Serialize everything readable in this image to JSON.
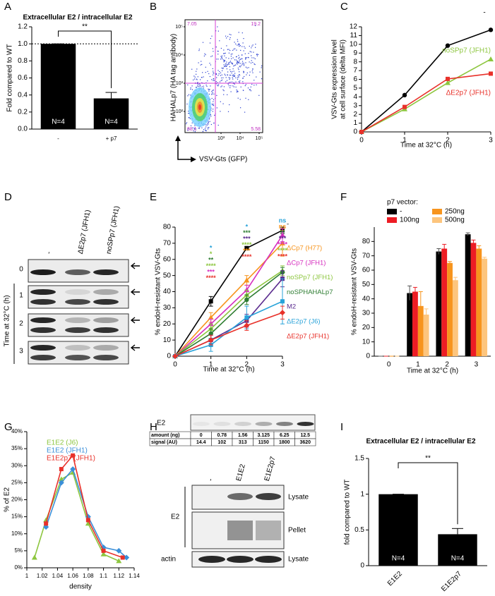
{
  "chart_data": [
    {
      "type": "bar",
      "title": "Extracellular E2 / intracellular E2",
      "ylabel": "Fold compared to WT",
      "categories": [
        "-",
        "+ p7"
      ],
      "values": [
        1.0,
        0.36
      ],
      "errors": [
        0,
        0.07
      ],
      "color": "#000000",
      "bar_labels": [
        "N=4",
        "N=4"
      ],
      "annotation": "**",
      "reference_line": 1.0,
      "ylim": [
        0,
        1.2
      ],
      "yticks": [
        {
          "value": 0,
          "label": "0.0"
        },
        0.2,
        0.4,
        0.6,
        0.8,
        {
          "value": 1,
          "label": "1.0"
        },
        1.2
      ]
    },
    {
      "type": "line",
      "xlabel": "Time at 32°C (h)",
      "ylabel": [
        "VSV-Gts expression level",
        "at cell surface (delta MFI)"
      ],
      "x": [
        0,
        1,
        2,
        3
      ],
      "xlim": [
        0,
        3
      ],
      "xticks": [
        0,
        1,
        2,
        3
      ],
      "ylim": [
        0,
        12
      ],
      "yticks": [
        0,
        1,
        2,
        3,
        4,
        5,
        6,
        7,
        8,
        9,
        10,
        11,
        12
      ],
      "series": [
        {
          "name": "-",
          "color": "#000000",
          "marker": "circle",
          "values": [
            0,
            4.2,
            9.85,
            11.65
          ]
        },
        {
          "name": "noSPp7 (JFH1)",
          "color": "#8dc63f",
          "marker": "triangle",
          "values": [
            0,
            2.6,
            5.6,
            8.3
          ]
        },
        {
          "name": "ΔE2p7 (JFH1)",
          "color": "#e8312a",
          "marker": "square",
          "values": [
            0,
            2.85,
            6.05,
            6.65
          ]
        }
      ]
    },
    {
      "type": "line",
      "xlabel": "Time at 32°C (h)",
      "ylabel": "% endoH-resistant VSV-Gts",
      "x": [
        0,
        1,
        2,
        3
      ],
      "xlim": [
        0,
        3
      ],
      "xticks": [
        0,
        1,
        2,
        3
      ],
      "ylim": [
        0,
        80
      ],
      "yticks": [
        0,
        10,
        20,
        30,
        40,
        50,
        60,
        70,
        80
      ],
      "series": [
        {
          "name": "-",
          "color": "#000000",
          "marker": "square",
          "values": [
            0,
            34,
            67,
            78
          ],
          "errors": [
            0,
            3,
            1,
            2
          ]
        },
        {
          "name": "ΔCp7 (H77)",
          "color": "#f7941d",
          "marker": "triangle",
          "values": [
            0,
            24,
            47,
            70
          ],
          "errors": [
            0,
            3,
            3,
            8
          ]
        },
        {
          "name": "ΔCp7 (JFH1)",
          "color": "#d62fbf",
          "marker": "triangle",
          "values": [
            0,
            20,
            41,
            75
          ],
          "errors": [
            0,
            3,
            3,
            4
          ]
        },
        {
          "name": "noSPp7 (JFH1)",
          "color": "#8dc63f",
          "marker": "triangle",
          "values": [
            0,
            17,
            38,
            53
          ],
          "errors": [
            0,
            3,
            3,
            3
          ]
        },
        {
          "name": "noSPHAHALp7",
          "color": "#2e7d32",
          "marker": "circle",
          "values": [
            0,
            14,
            35,
            52
          ],
          "errors": [
            0,
            3,
            3,
            3
          ]
        },
        {
          "name": "M2",
          "color": "#5b2c8f",
          "marker": "square",
          "values": [
            0,
            10,
            22,
            48
          ],
          "errors": [
            0,
            3,
            4,
            5
          ]
        },
        {
          "name": "ΔE2p7 (J6)",
          "color": "#29a3d9",
          "marker": "square",
          "values": [
            0,
            7,
            24,
            34
          ],
          "errors": [
            0,
            4,
            7,
            14
          ]
        },
        {
          "name": "ΔE2p7 (JFH1)",
          "color": "#e8312a",
          "marker": "diamond",
          "values": [
            0,
            10,
            19,
            27
          ],
          "errors": [
            0,
            3,
            3,
            4
          ]
        }
      ],
      "annotations": [
        {
          "x": 1,
          "marks": [
            {
              "text": "*",
              "color": "#29a3d9"
            },
            {
              "text": "*",
              "color": "#8dc63f"
            },
            {
              "text": "**",
              "color": "#2e7d32"
            },
            {
              "text": "****",
              "color": "#8dc63f"
            },
            {
              "text": "***",
              "color": "#d62fbf"
            },
            {
              "text": "****",
              "color": "#e8312a"
            }
          ]
        },
        {
          "x": 2,
          "marks": [
            {
              "text": "*",
              "color": "#29a3d9"
            },
            {
              "text": "***",
              "color": "#2e7d32"
            },
            {
              "text": "***",
              "color": "#5b2c8f"
            },
            {
              "text": "****",
              "color": "#8dc63f"
            },
            {
              "text": "***",
              "color": "#f7941d"
            },
            {
              "text": "****",
              "color": "#e8312a"
            }
          ]
        },
        {
          "x": 3,
          "marks": [
            {
              "text": "ns",
              "color": "#29a3d9"
            },
            {
              "text": "ns",
              "color": "#f7941d"
            },
            {
              "text": "**",
              "color": "#2e7d32"
            },
            {
              "text": "***",
              "color": "#5b2c8f"
            },
            {
              "text": "****",
              "color": "#d62fbf"
            },
            {
              "text": "****",
              "color": "#8dc63f"
            },
            {
              "text": "****",
              "color": "#e8312a"
            }
          ]
        }
      ]
    },
    {
      "type": "grouped_bar",
      "legend_title": "p7 vector:",
      "xlabel": "Time at 32°C (h)",
      "ylabel": "% endoH-resistant VSV-Gts",
      "categories": [
        "0",
        "1",
        "2",
        "3"
      ],
      "ylim": [
        0,
        90
      ],
      "yticks": [
        0,
        10,
        20,
        30,
        40,
        50,
        60,
        70,
        80
      ],
      "series": [
        {
          "name": "-",
          "color": "#000000",
          "values": [
            0,
            44,
            73,
            85
          ],
          "errors": [
            0,
            5,
            2,
            1
          ]
        },
        {
          "name": "100ng",
          "color": "#ed1c24",
          "values": [
            0,
            45,
            75,
            79
          ],
          "errors": [
            0,
            3,
            3,
            2
          ]
        },
        {
          "name": "250ng",
          "color": "#f7941d",
          "values": [
            0,
            35,
            65,
            75
          ],
          "errors": [
            0,
            10,
            1,
            2
          ]
        },
        {
          "name": "500ng",
          "color": "#fdc57d",
          "values": [
            0,
            29,
            53,
            68
          ],
          "errors": [
            0,
            4,
            2,
            1
          ]
        }
      ]
    },
    {
      "type": "line",
      "xlabel": "density",
      "ylabel": "% of E2",
      "xlim": [
        1,
        1.14
      ],
      "xticks": [
        1,
        1.02,
        1.04,
        1.06,
        1.08,
        1.1,
        1.12,
        1.14
      ],
      "ylim": [
        0,
        40
      ],
      "yticks": [
        {
          "value": 0,
          "label": "0%"
        },
        {
          "value": 5,
          "label": "5%"
        },
        {
          "value": 10,
          "label": "10%"
        },
        {
          "value": 15,
          "label": "15%"
        },
        {
          "value": 20,
          "label": "20%"
        },
        {
          "value": 25,
          "label": "25%"
        },
        {
          "value": 30,
          "label": "30%"
        },
        {
          "value": 35,
          "label": "35%"
        },
        {
          "value": 40,
          "label": "40%"
        }
      ],
      "series": [
        {
          "name": "E1E2 (J6)",
          "color": "#8dc63f",
          "marker": "triangle",
          "x": [
            1.01,
            1.025,
            1.045,
            1.06,
            1.08,
            1.1,
            1.12
          ],
          "values": [
            3,
            14,
            26,
            28,
            13,
            4,
            2
          ]
        },
        {
          "name": "E1E2 (JFH1)",
          "color": "#3a8fd9",
          "marker": "diamond",
          "x": [
            1.025,
            1.045,
            1.06,
            1.08,
            1.1,
            1.12,
            1.13
          ],
          "values": [
            12,
            25,
            29,
            15,
            6,
            5,
            3
          ]
        },
        {
          "name": "E1E2p7 (JFH1)",
          "color": "#e8312a",
          "marker": "square",
          "x": [
            1.025,
            1.045,
            1.06,
            1.08,
            1.1,
            1.125
          ],
          "values": [
            13,
            29,
            33,
            14,
            5,
            3
          ]
        }
      ]
    },
    {
      "type": "bar",
      "title": "Extracellular E2 / intracellular E2",
      "ylabel": "fold compared to WT",
      "categories": [
        "E1E2",
        "E1E2p7"
      ],
      "values": [
        1.0,
        0.44
      ],
      "errors": [
        0,
        0.08
      ],
      "color": "#000000",
      "bar_labels": [
        "N=4",
        "N=4"
      ],
      "annotation": "**",
      "ylim": [
        0,
        1.5
      ],
      "yticks": [
        0,
        0.5,
        1,
        1.5
      ]
    }
  ],
  "panel_letters": [
    "A",
    "B",
    "C",
    "D",
    "E",
    "F",
    "G",
    "H",
    "I"
  ],
  "flow": {
    "quadrants": [
      "7.05",
      "19.2",
      "68.1",
      "5.58"
    ],
    "yticks": [
      "10⁵",
      "10⁴",
      "10³",
      "10²"
    ],
    "xticks": [
      "10³",
      "10⁴",
      "10⁵"
    ],
    "xlabel": "VSV-Gts (GFP)",
    "ylabel": "HAHALp7 (HA tag antibody)"
  },
  "blot_d": {
    "lanes": [
      "-",
      "ΔE2p7 (JFH1)",
      "noSPp7 (JFH1)"
    ],
    "rows": [
      "0",
      "1",
      "2",
      "3"
    ],
    "ylabel": "Time at 32°C (h)"
  },
  "blot_h": {
    "standard_label": "E2",
    "table": {
      "rows": [
        [
          "amount (ng)",
          "0",
          "0.78",
          "1.56",
          "3.125",
          "6.25",
          "12.5"
        ],
        [
          "signal (AU)",
          "14.4",
          "102",
          "313",
          "1150",
          "1800",
          "3620"
        ]
      ]
    },
    "lanes": [
      "-",
      "E1E2",
      "E1E2p7"
    ],
    "blot_labels": [
      "Lysate",
      "Pellet",
      "Lysate"
    ],
    "left_labels": [
      "E2",
      "actin"
    ]
  }
}
